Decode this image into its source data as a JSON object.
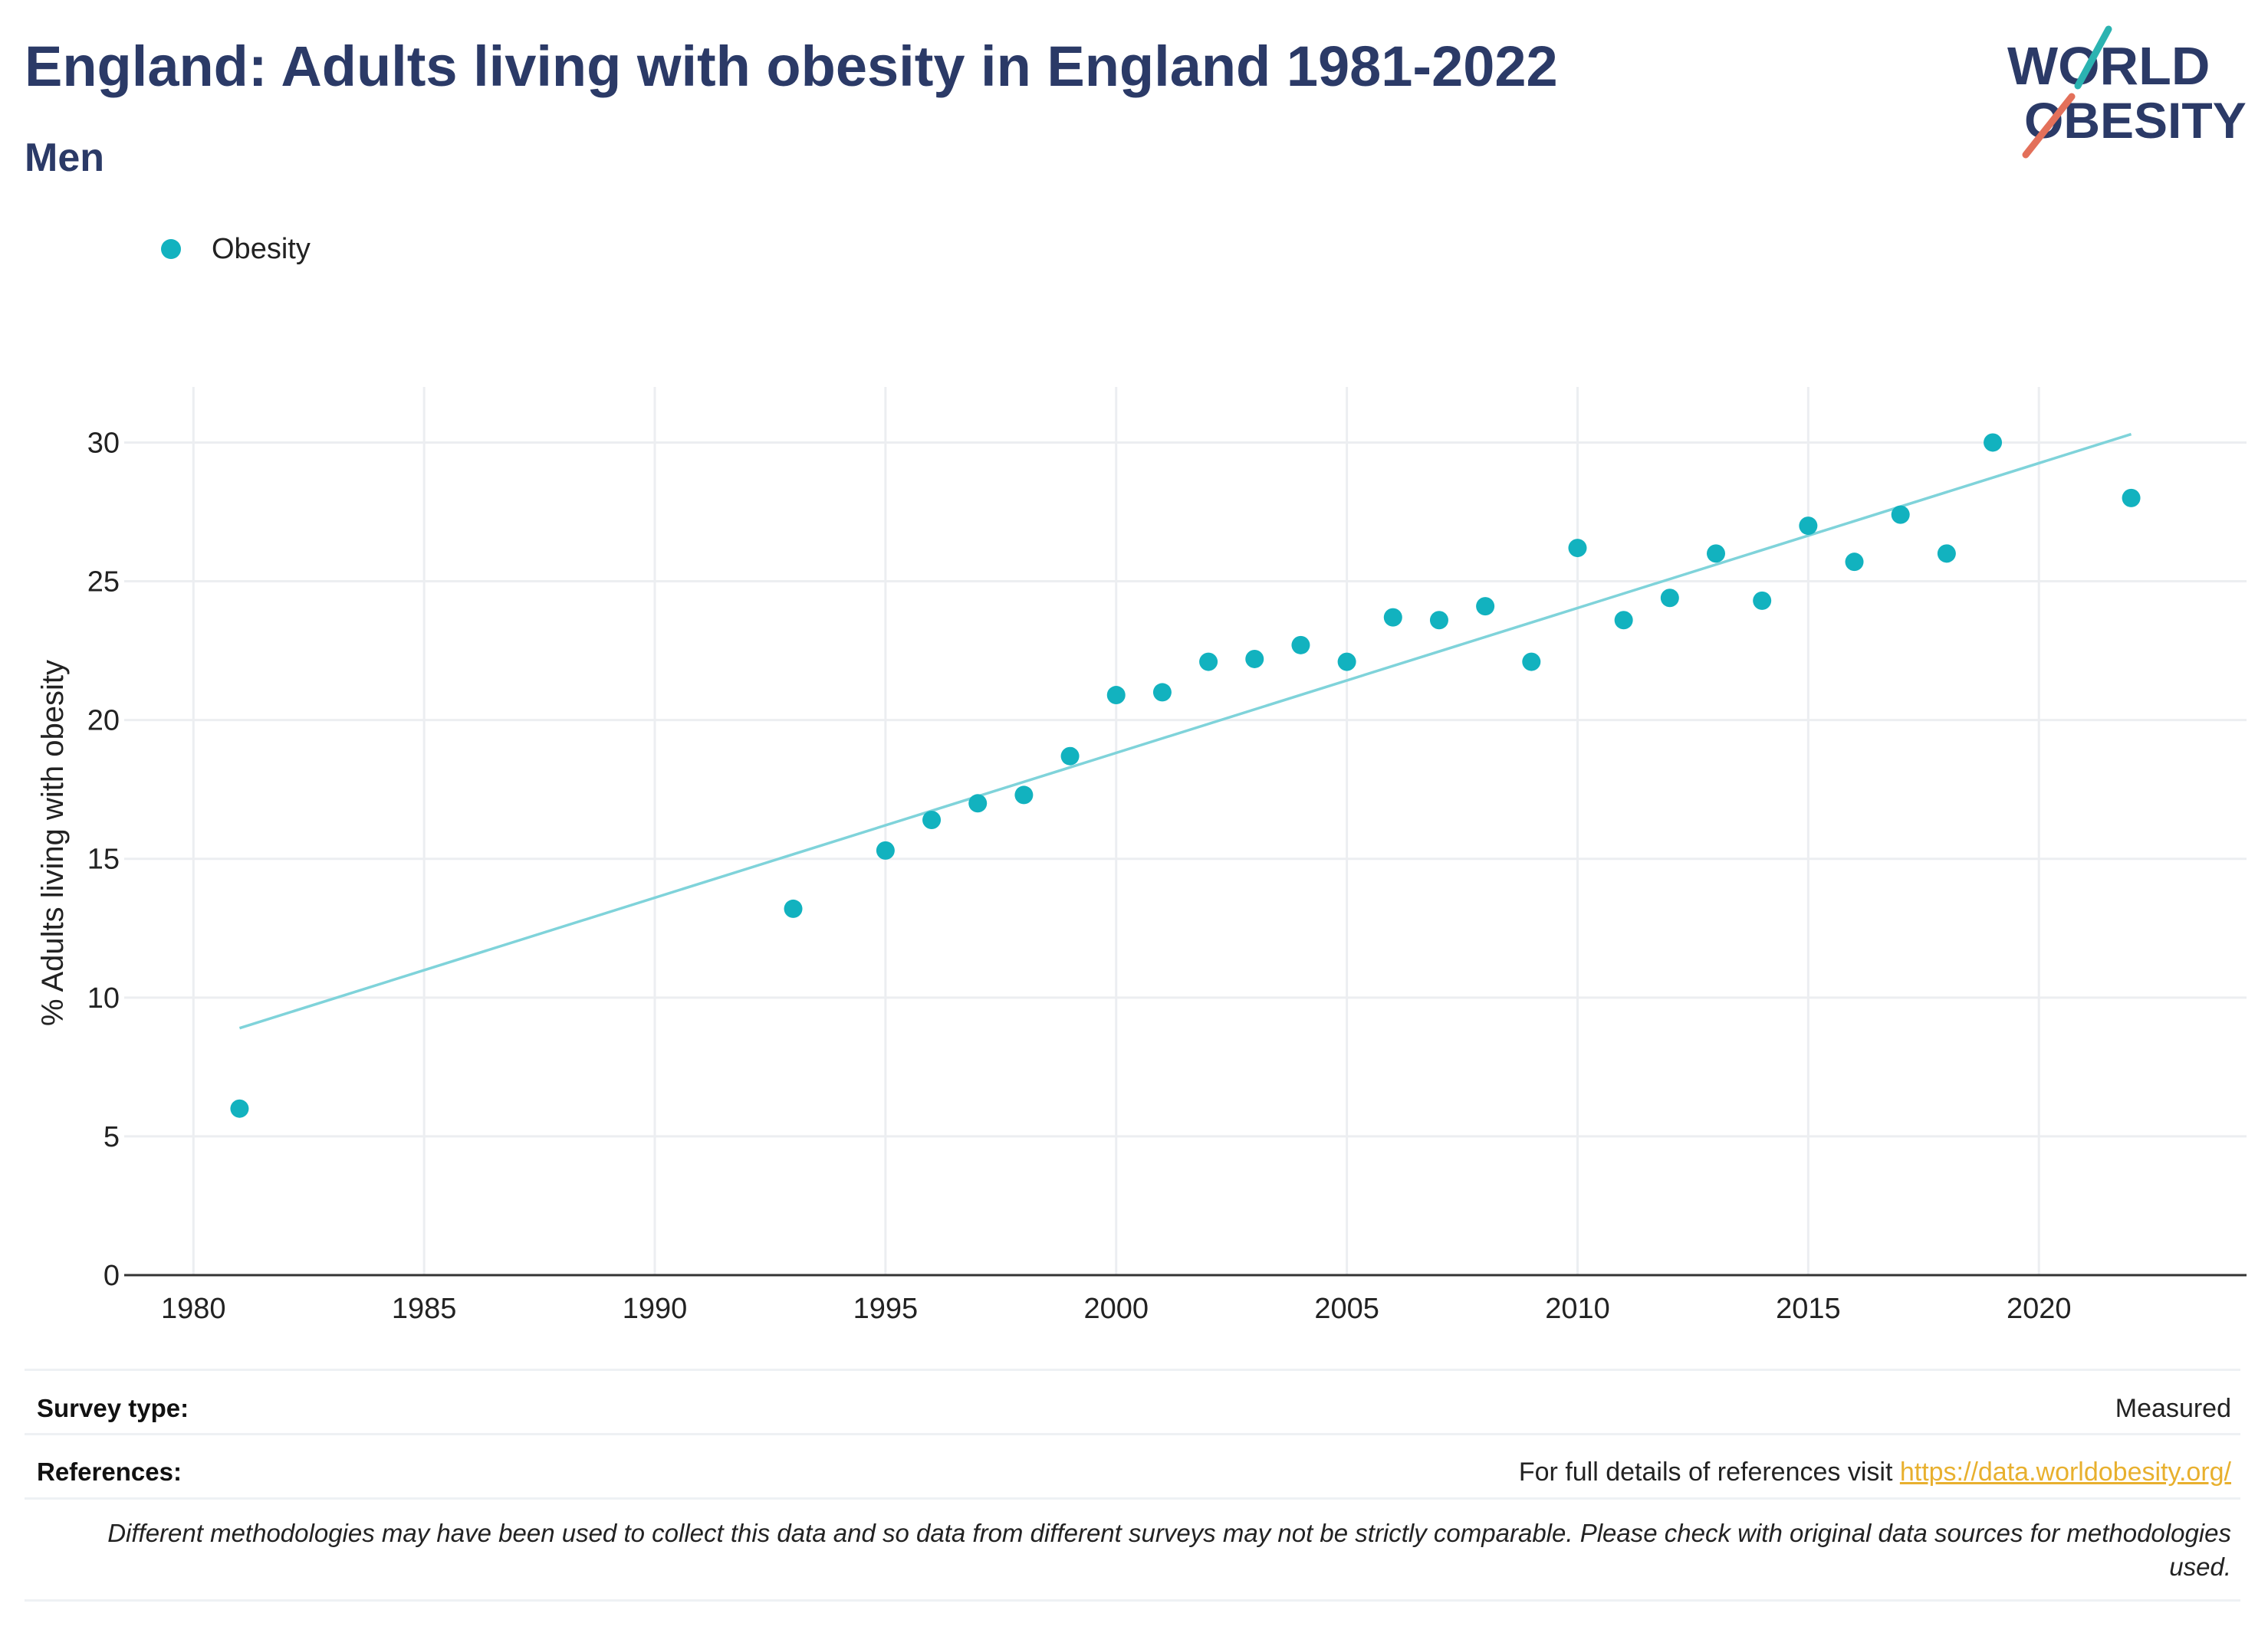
{
  "title": "England: Adults living with obesity in England 1981-2022",
  "subtitle": "Men",
  "logo": {
    "line1": "WORLD",
    "line2": "OBESITY"
  },
  "legend": {
    "label": "Obesity",
    "color": "#12b2bf"
  },
  "colors": {
    "title": "#2b3a67",
    "points": "#12b2bf",
    "trend": "#7fd3da",
    "grid": "#eceef1",
    "link": "#e8b02e",
    "logo_teal": "#2bb3b1",
    "logo_red": "#e3705a"
  },
  "chart_data": {
    "type": "scatter",
    "title": "England: Adults living with obesity in England 1981-2022",
    "subtitle": "Men",
    "xlabel": "",
    "ylabel": "% Adults living with obesity",
    "xlim": [
      1978.5,
      2024.5
    ],
    "ylim": [
      0,
      32
    ],
    "xticks": [
      1980,
      1985,
      1990,
      1995,
      2000,
      2005,
      2010,
      2015,
      2020
    ],
    "yticks": [
      0,
      5,
      10,
      15,
      20,
      25,
      30
    ],
    "grid": true,
    "legend_position": "top-left",
    "series": [
      {
        "name": "Obesity",
        "x": [
          1981,
          1993,
          1995,
          1996,
          1997,
          1998,
          1999,
          2000,
          2001,
          2002,
          2003,
          2004,
          2005,
          2006,
          2007,
          2008,
          2009,
          2010,
          2011,
          2012,
          2013,
          2014,
          2015,
          2016,
          2017,
          2018,
          2019,
          2022
        ],
        "y": [
          6.0,
          13.2,
          15.3,
          16.4,
          17.0,
          17.3,
          18.7,
          20.9,
          21.0,
          22.1,
          22.2,
          22.7,
          22.1,
          23.7,
          23.6,
          24.1,
          22.1,
          26.2,
          23.6,
          24.4,
          26.0,
          24.3,
          27.0,
          25.7,
          27.4,
          26.0,
          30.0,
          28.0
        ]
      }
    ],
    "trendline": {
      "x": [
        1981,
        2022
      ],
      "y": [
        8.9,
        30.3
      ]
    }
  },
  "footer": {
    "survey_label": "Survey type:",
    "survey_value": "Measured",
    "references_label": "References:",
    "references_text": "For full details of references visit ",
    "references_link": "https://data.worldobesity.org/",
    "note": "Different methodologies may have been used to collect this data and so data from different surveys may not be strictly comparable. Please check with original data sources for methodologies used."
  }
}
